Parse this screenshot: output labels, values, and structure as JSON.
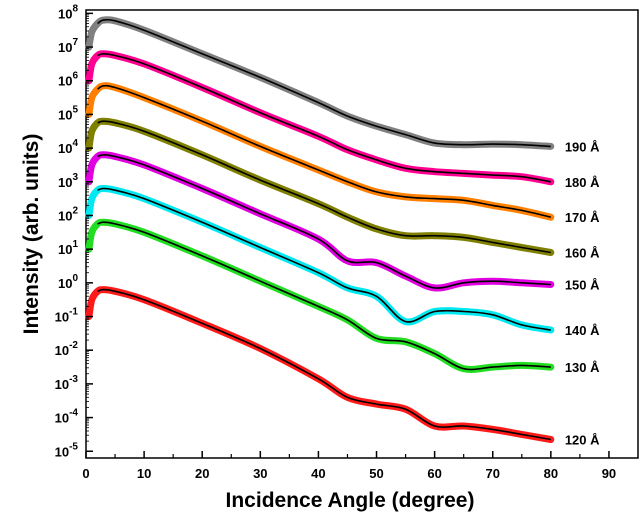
{
  "chart_data": {
    "type": "line",
    "title": "",
    "xlabel": "Incidence Angle (degree)",
    "ylabel": "Intensity (arb. units)",
    "xlim": [
      0,
      95
    ],
    "ylim_log10": [
      -5.2,
      8.1
    ],
    "yscale": "log",
    "x_ticks": [
      "0",
      "10",
      "20",
      "30",
      "40",
      "50",
      "60",
      "70",
      "80",
      "90"
    ],
    "y_ticks": [
      {
        "base": "10",
        "exp": "8"
      },
      {
        "base": "10",
        "exp": "7"
      },
      {
        "base": "10",
        "exp": "6"
      },
      {
        "base": "10",
        "exp": "5"
      },
      {
        "base": "10",
        "exp": "4"
      },
      {
        "base": "10",
        "exp": "3"
      },
      {
        "base": "10",
        "exp": "2"
      },
      {
        "base": "10",
        "exp": "1"
      },
      {
        "base": "10",
        "exp": "0"
      },
      {
        "base": "10",
        "exp": "-1"
      },
      {
        "base": "10",
        "exp": "-2"
      },
      {
        "base": "10",
        "exp": "-3"
      },
      {
        "base": "10",
        "exp": "-4"
      },
      {
        "base": "10",
        "exp": "-5"
      }
    ],
    "grid": false,
    "fit_line_color": "#000000",
    "series": [
      {
        "name": "190 Å",
        "color": "#808080",
        "x": [
          0.5,
          1,
          2,
          3,
          5,
          10,
          20,
          30,
          40,
          45,
          50,
          55,
          60,
          65,
          70,
          75,
          80
        ],
        "log10_y": [
          7.0,
          7.45,
          7.7,
          7.8,
          7.78,
          7.5,
          6.8,
          6.1,
          5.35,
          4.95,
          4.65,
          4.4,
          4.15,
          4.1,
          4.12,
          4.1,
          4.05
        ]
      },
      {
        "name": "180 Å",
        "color": "#ff0090",
        "x": [
          0.5,
          1,
          2,
          3,
          5,
          10,
          20,
          30,
          40,
          45,
          50,
          55,
          60,
          65,
          70,
          75,
          80
        ],
        "log10_y": [
          6.0,
          6.5,
          6.75,
          6.8,
          6.75,
          6.5,
          5.8,
          5.05,
          4.35,
          3.95,
          3.65,
          3.4,
          3.3,
          3.25,
          3.2,
          3.15,
          3.0
        ]
      },
      {
        "name": "170 Å",
        "color": "#ff8000",
        "x": [
          0.5,
          1,
          2,
          3,
          5,
          10,
          20,
          30,
          40,
          45,
          50,
          55,
          60,
          65,
          70,
          75,
          80
        ],
        "log10_y": [
          5.0,
          5.5,
          5.75,
          5.85,
          5.8,
          5.5,
          4.8,
          4.05,
          3.35,
          3.0,
          2.7,
          2.55,
          2.5,
          2.45,
          2.3,
          2.15,
          1.95
        ]
      },
      {
        "name": "160 Å",
        "color": "#808000",
        "x": [
          0.5,
          1,
          2,
          3,
          5,
          10,
          20,
          30,
          40,
          45,
          50,
          55,
          60,
          65,
          70,
          75,
          80
        ],
        "log10_y": [
          4.0,
          4.5,
          4.75,
          4.8,
          4.75,
          4.5,
          3.8,
          3.05,
          2.35,
          1.95,
          1.6,
          1.4,
          1.4,
          1.35,
          1.2,
          1.05,
          0.9
        ]
      },
      {
        "name": "150 Å",
        "color": "#e000e0",
        "x": [
          0.5,
          1,
          2,
          3,
          5,
          10,
          20,
          30,
          40,
          45,
          50,
          55,
          60,
          65,
          70,
          75,
          80
        ],
        "log10_y": [
          3.0,
          3.5,
          3.75,
          3.8,
          3.75,
          3.5,
          2.8,
          2.05,
          1.3,
          0.65,
          0.6,
          0.2,
          -0.15,
          0.0,
          0.05,
          0.0,
          -0.05
        ]
      },
      {
        "name": "140 Å",
        "color": "#00e8f0",
        "x": [
          0.5,
          1,
          2,
          3,
          5,
          10,
          20,
          30,
          40,
          45,
          50,
          55,
          60,
          65,
          70,
          75,
          80
        ],
        "log10_y": [
          2.0,
          2.5,
          2.75,
          2.8,
          2.75,
          2.5,
          1.8,
          1.05,
          0.3,
          -0.15,
          -0.4,
          -1.15,
          -0.85,
          -0.85,
          -0.95,
          -1.25,
          -1.4
        ]
      },
      {
        "name": "130 Å",
        "color": "#22dd22",
        "x": [
          0.5,
          1,
          2,
          3,
          5,
          10,
          20,
          30,
          40,
          45,
          50,
          55,
          60,
          65,
          70,
          75,
          80
        ],
        "log10_y": [
          1.0,
          1.5,
          1.75,
          1.8,
          1.75,
          1.5,
          0.8,
          0.05,
          -0.7,
          -1.1,
          -1.65,
          -1.75,
          -2.1,
          -2.55,
          -2.5,
          -2.45,
          -2.5
        ]
      },
      {
        "name": "120 Å",
        "color": "#ff1a1a",
        "x": [
          0.5,
          1,
          2,
          3,
          5,
          10,
          20,
          30,
          40,
          45,
          50,
          55,
          60,
          65,
          70,
          75,
          80
        ],
        "log10_y": [
          -1.0,
          -0.5,
          -0.25,
          -0.2,
          -0.25,
          -0.5,
          -1.2,
          -1.95,
          -2.85,
          -3.4,
          -3.6,
          -3.75,
          -4.25,
          -4.25,
          -4.35,
          -4.5,
          -4.65
        ]
      }
    ]
  }
}
